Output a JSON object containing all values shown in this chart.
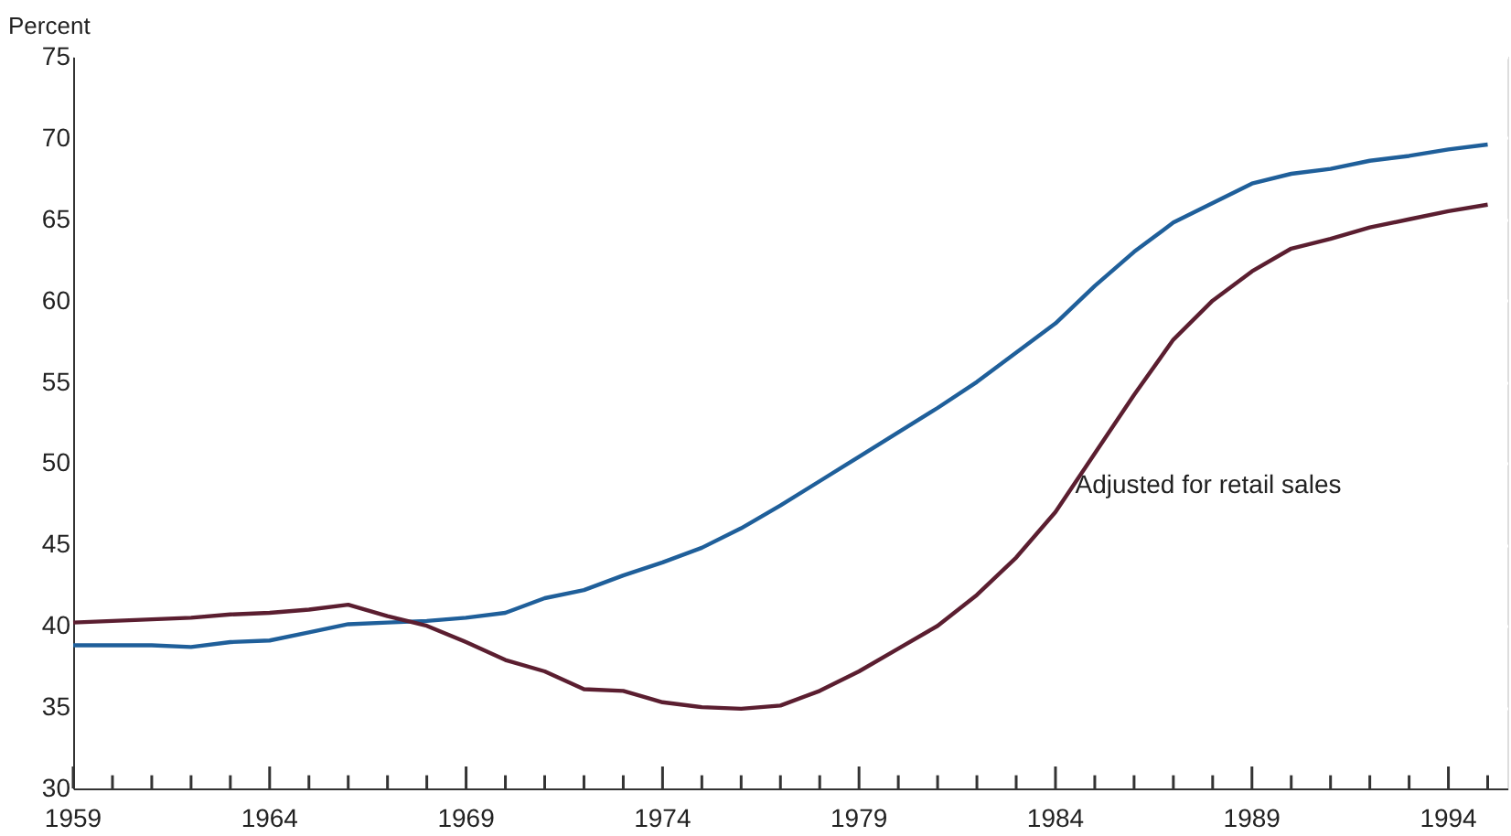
{
  "chart_data": {
    "type": "line",
    "ylabel": "Percent",
    "x": [
      1959,
      1960,
      1961,
      1962,
      1963,
      1964,
      1965,
      1966,
      1967,
      1968,
      1969,
      1970,
      1971,
      1972,
      1973,
      1974,
      1975,
      1976,
      1977,
      1978,
      1979,
      1980,
      1981,
      1982,
      1983,
      1984,
      1985,
      1986,
      1987,
      1988,
      1989,
      1990,
      1991,
      1992,
      1993,
      1994,
      1995
    ],
    "series": [
      {
        "color": "#1f5f9a",
        "values": [
          38.8,
          38.8,
          38.8,
          38.7,
          39.0,
          39.1,
          39.6,
          40.1,
          40.2,
          40.3,
          40.5,
          40.8,
          41.7,
          42.2,
          43.1,
          43.9,
          44.8,
          46.0,
          47.4,
          48.9,
          50.4,
          51.9,
          53.4,
          55.0,
          56.8,
          58.6,
          60.9,
          63.0,
          64.8,
          66.0,
          67.2,
          67.8,
          68.1,
          68.6,
          68.9,
          69.3,
          69.6
        ]
      },
      {
        "color": "#5b1e30",
        "values": [
          40.2,
          40.3,
          40.4,
          40.5,
          40.7,
          40.8,
          41.0,
          41.3,
          40.6,
          40.0,
          39.0,
          37.9,
          37.2,
          36.1,
          36.0,
          35.3,
          35.0,
          34.9,
          35.1,
          36.0,
          37.2,
          38.6,
          40.0,
          41.9,
          44.2,
          47.0,
          50.6,
          54.2,
          57.6,
          60.0,
          61.8,
          63.2,
          63.8,
          64.5,
          65.0,
          65.5,
          65.9
        ]
      }
    ],
    "annotations": [
      {
        "text": "Adjusted for retail sales",
        "x": 1984.5,
        "y": 48.6
      }
    ],
    "xlim": [
      1959,
      1995.5
    ],
    "xticks": [
      1959,
      {
        "value": 1960,
        "label": null
      },
      {
        "value": 1961,
        "label": null
      },
      {
        "value": 1962,
        "label": null
      },
      {
        "value": 1963,
        "label": null
      },
      1964,
      {
        "value": 1965,
        "label": null
      },
      {
        "value": 1966,
        "label": null
      },
      {
        "value": 1967,
        "label": null
      },
      {
        "value": 1968,
        "label": null
      },
      1969,
      {
        "value": 1970,
        "label": null
      },
      {
        "value": 1971,
        "label": null
      },
      {
        "value": 1972,
        "label": null
      },
      {
        "value": 1973,
        "label": null
      },
      1974,
      {
        "value": 1975,
        "label": null
      },
      {
        "value": 1976,
        "label": null
      },
      {
        "value": 1977,
        "label": null
      },
      {
        "value": 1978,
        "label": null
      },
      1979,
      {
        "value": 1980,
        "label": null
      },
      {
        "value": 1981,
        "label": null
      },
      {
        "value": 1982,
        "label": null
      },
      {
        "value": 1983,
        "label": null
      },
      1984,
      {
        "value": 1985,
        "label": null
      },
      {
        "value": 1986,
        "label": null
      },
      {
        "value": 1987,
        "label": null
      },
      {
        "value": 1988,
        "label": null
      },
      1989,
      {
        "value": 1990,
        "label": null
      },
      {
        "value": 1991,
        "label": null
      },
      {
        "value": 1992,
        "label": null
      },
      {
        "value": 1993,
        "label": null
      },
      1994,
      {
        "value": 1995,
        "label": null
      }
    ],
    "ylim": [
      30,
      75
    ],
    "yticks": [
      30,
      35,
      40,
      45,
      50,
      55,
      60,
      65,
      70,
      75
    ],
    "grid": "y",
    "line_style": "solid",
    "marker": "none"
  }
}
